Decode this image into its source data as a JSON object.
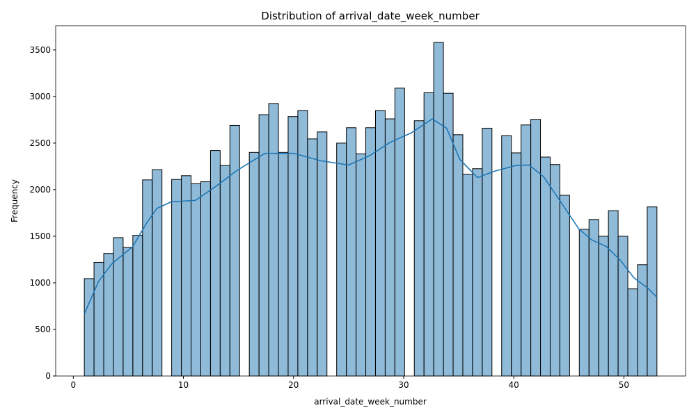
{
  "chart_data": {
    "type": "histogram",
    "title": "Distribution of arrival_date_week_number",
    "x_label": "arrival_date_week_number",
    "y_label": "Frequency",
    "bins": [
      1,
      1.881,
      2.763,
      3.644,
      4.525,
      5.407,
      6.288,
      7.169,
      8.051,
      8.932,
      9.814,
      10.695,
      11.576,
      12.458,
      13.339,
      14.22,
      15.102,
      15.983,
      16.864,
      17.746,
      18.627,
      19.508,
      20.39,
      21.271,
      22.153,
      23.034,
      23.915,
      24.797,
      25.678,
      26.559,
      27.441,
      28.322,
      29.203,
      30.085,
      30.966,
      31.847,
      32.729,
      33.61,
      34.492,
      35.373,
      36.254,
      37.136,
      38.017,
      38.898,
      39.78,
      40.661,
      41.542,
      42.424,
      43.305,
      44.186,
      45.068,
      45.949,
      46.831,
      47.712,
      48.593,
      49.475,
      50.356,
      51.237,
      52.119,
      53
    ],
    "counts": [
      1045,
      1220,
      1315,
      1485,
      1380,
      1510,
      2105,
      2215,
      0,
      2110,
      2150,
      2065,
      2085,
      2420,
      2260,
      2690,
      0,
      2400,
      2805,
      2925,
      2400,
      2785,
      2850,
      2545,
      2620,
      0,
      2500,
      2665,
      2385,
      2665,
      2850,
      2760,
      3090,
      0,
      2740,
      3040,
      3580,
      3035,
      2590,
      2165,
      2225,
      2660,
      0,
      2580,
      2395,
      2695,
      2755,
      2350,
      2270,
      1940,
      0,
      1575,
      1680,
      1500,
      1775,
      1500,
      935,
      1195,
      1815
    ],
    "color": "#1f77b4",
    "kde": {
      "color": "#1f77b4",
      "x": [
        1,
        2.3,
        3.5,
        5.4,
        6.7,
        7.6,
        8.9,
        11.1,
        13,
        14.9,
        17.4,
        20,
        22.5,
        25,
        26.9,
        28.8,
        30.7,
        32.6,
        33.9,
        35.1,
        36.7,
        38.3,
        40.2,
        41.4,
        42.7,
        44,
        45.9,
        47.1,
        48.4,
        49.7,
        50.9,
        52.2,
        53
      ],
      "values": [
        665,
        1017,
        1204,
        1390,
        1650,
        1800,
        1870,
        1885,
        2040,
        2210,
        2390,
        2390,
        2310,
        2265,
        2365,
        2510,
        2610,
        2760,
        2660,
        2325,
        2130,
        2200,
        2260,
        2265,
        2140,
        1915,
        1580,
        1460,
        1390,
        1240,
        1055,
        940,
        845
      ]
    },
    "xlim": [
      -1.6,
      55.6
    ],
    "ylim": [
      0,
      3760
    ],
    "xticks": [
      0,
      10,
      20,
      30,
      40,
      50
    ],
    "yticks": [
      0,
      500,
      1000,
      1500,
      2000,
      2500,
      3000,
      3500
    ]
  }
}
